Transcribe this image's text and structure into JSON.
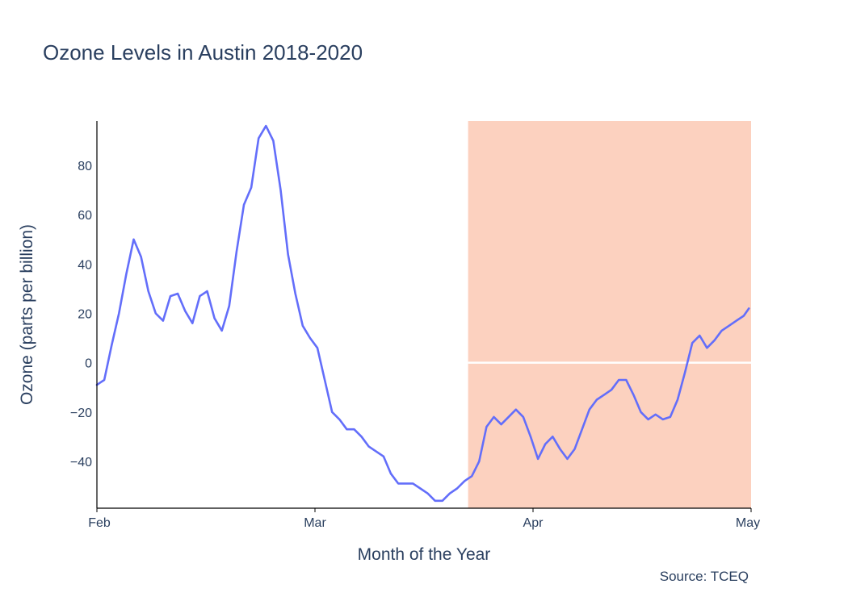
{
  "chart_data": {
    "type": "line",
    "title": "Ozone Levels in Austin 2018-2020",
    "xlabel": "Month of the Year",
    "ylabel": "Ozone (parts per billion)",
    "source_note": "Source: TCEQ",
    "x_tick_labels": [
      "Feb",
      "Mar",
      "Apr",
      "May"
    ],
    "y_tick_values": [
      -40,
      -20,
      0,
      20,
      40,
      60,
      80
    ],
    "xlim": [
      0,
      89
    ],
    "ylim": [
      -59,
      98
    ],
    "grid": false,
    "line_color": "#636efa",
    "highlight_region": {
      "x_start": 50.5,
      "x_end": 89,
      "color": "#fcd1bf"
    },
    "reference_line": {
      "y": 0,
      "x_start": 50.5,
      "x_end": 89,
      "color": "#ffffff"
    },
    "series": [
      {
        "points": [
          [
            0,
            -9
          ],
          [
            1,
            -7
          ],
          [
            2,
            7
          ],
          [
            3,
            20
          ],
          [
            4,
            36
          ],
          [
            5,
            50
          ],
          [
            6,
            43
          ],
          [
            7,
            29
          ],
          [
            8,
            20
          ],
          [
            9,
            17
          ],
          [
            10,
            27
          ],
          [
            11,
            28
          ],
          [
            12,
            21
          ],
          [
            13,
            16
          ],
          [
            14,
            27
          ],
          [
            15,
            29
          ],
          [
            16,
            18
          ],
          [
            17,
            13
          ],
          [
            18,
            23
          ],
          [
            19,
            45
          ],
          [
            20,
            64
          ],
          [
            21,
            71
          ],
          [
            22,
            91
          ],
          [
            23,
            96
          ],
          [
            24,
            90
          ],
          [
            25,
            70
          ],
          [
            26,
            44
          ],
          [
            27,
            28
          ],
          [
            28,
            15
          ],
          [
            29,
            10
          ],
          [
            30,
            6
          ],
          [
            31,
            -7
          ],
          [
            32,
            -20
          ],
          [
            33,
            -23
          ],
          [
            34,
            -27
          ],
          [
            35,
            -27
          ],
          [
            36,
            -30
          ],
          [
            37,
            -34
          ],
          [
            38,
            -36
          ],
          [
            39,
            -38
          ],
          [
            40,
            -45
          ],
          [
            41,
            -49
          ],
          [
            42,
            -49
          ],
          [
            43,
            -49
          ],
          [
            44,
            -51
          ],
          [
            45,
            -53
          ],
          [
            46,
            -56
          ],
          [
            47,
            -56
          ],
          [
            48,
            -53
          ],
          [
            49,
            -51
          ],
          [
            50,
            -48
          ],
          [
            50.5,
            -47
          ],
          [
            51,
            -46
          ],
          [
            52,
            -40
          ],
          [
            53,
            -26
          ],
          [
            54,
            -22
          ],
          [
            55,
            -25
          ],
          [
            56,
            -22
          ],
          [
            57,
            -19
          ],
          [
            58,
            -22
          ],
          [
            59,
            -30
          ],
          [
            60,
            -39
          ],
          [
            61,
            -33
          ],
          [
            62,
            -30
          ],
          [
            63,
            -35
          ],
          [
            64,
            -39
          ],
          [
            65,
            -35
          ],
          [
            66,
            -27
          ],
          [
            67,
            -19
          ],
          [
            68,
            -15
          ],
          [
            69,
            -13
          ],
          [
            70,
            -11
          ],
          [
            71,
            -7
          ],
          [
            72,
            -7
          ],
          [
            73,
            -13
          ],
          [
            74,
            -20
          ],
          [
            75,
            -23
          ],
          [
            76,
            -21
          ],
          [
            77,
            -23
          ],
          [
            78,
            -22
          ],
          [
            79,
            -15
          ],
          [
            80,
            -4
          ],
          [
            81,
            8
          ],
          [
            82,
            11
          ],
          [
            83,
            6
          ],
          [
            84,
            9
          ],
          [
            85,
            13
          ],
          [
            86,
            15
          ],
          [
            87,
            17
          ],
          [
            88,
            19
          ],
          [
            88.7,
            22
          ]
        ]
      }
    ]
  }
}
